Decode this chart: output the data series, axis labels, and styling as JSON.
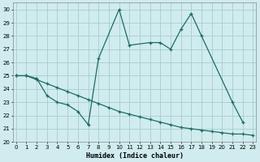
{
  "xlabel": "Humidex (Indice chaleur)",
  "bg_color": "#d0ecee",
  "grid_color": "#a8cccc",
  "line_color": "#1e6b65",
  "xlim": [
    -0.3,
    23.3
  ],
  "ylim": [
    20,
    30.5
  ],
  "xticks": [
    0,
    1,
    2,
    3,
    4,
    5,
    6,
    7,
    8,
    9,
    10,
    11,
    12,
    13,
    14,
    15,
    16,
    17,
    18,
    19,
    20,
    21,
    22,
    23
  ],
  "yticks": [
    20,
    21,
    22,
    23,
    24,
    25,
    26,
    27,
    28,
    29,
    30
  ],
  "series1_x": [
    0,
    1,
    2,
    3,
    4,
    5,
    6,
    7,
    8,
    10,
    11,
    13,
    14,
    15,
    16,
    17,
    18,
    21,
    22
  ],
  "series1_y": [
    25,
    25,
    24.8,
    23.5,
    23.0,
    22.8,
    22.3,
    21.3,
    26.3,
    30.0,
    27.3,
    27.5,
    27.5,
    27.0,
    28.5,
    29.7,
    28.0,
    23.0,
    21.5
  ],
  "series2_x": [
    0,
    1,
    2,
    3,
    4,
    5,
    6,
    7,
    8,
    9,
    10,
    11,
    12,
    13,
    14,
    15,
    16,
    17,
    18,
    19,
    20,
    21,
    22,
    23
  ],
  "series2_y": [
    25,
    25,
    24.7,
    24.4,
    24.1,
    23.8,
    23.5,
    23.2,
    22.9,
    22.6,
    22.3,
    22.1,
    21.9,
    21.7,
    21.5,
    21.3,
    21.1,
    21.0,
    20.9,
    20.8,
    20.7,
    20.6,
    20.6,
    20.5
  ]
}
